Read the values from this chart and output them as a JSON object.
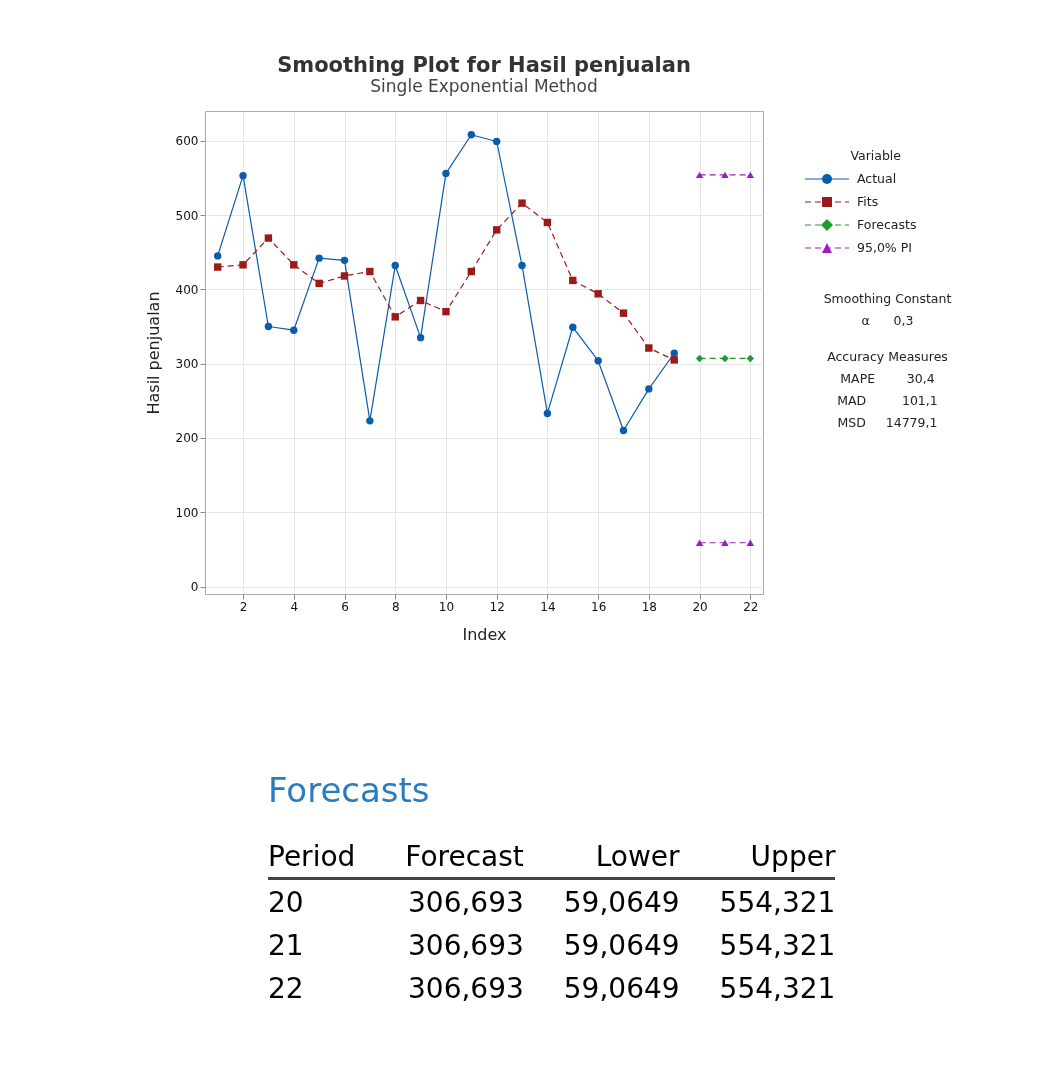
{
  "chart_data": {
    "type": "line",
    "title": "Smoothing Plot for Hasil penjualan",
    "subtitle": "Single Exponential Method",
    "xlabel": "Index",
    "ylabel": "Hasil penjualan",
    "legend_title": "Variable",
    "xlim": [
      0.5,
      22.5
    ],
    "xticks": [
      2,
      4,
      6,
      8,
      10,
      12,
      14,
      16,
      18,
      20,
      22
    ],
    "ylim": [
      -10,
      640
    ],
    "yticks": [
      0,
      100,
      200,
      300,
      400,
      500,
      600
    ],
    "grid": true,
    "legend": "right",
    "series": [
      {
        "name": "Actual",
        "color": "#0b5cad",
        "marker": "circle",
        "line_style": "solid",
        "x": [
          1,
          2,
          3,
          4,
          5,
          6,
          7,
          8,
          9,
          10,
          11,
          12,
          13,
          14,
          15,
          16,
          17,
          18,
          19
        ],
        "values": [
          445,
          553,
          350,
          345,
          442,
          439,
          223,
          432,
          335,
          556,
          608,
          599,
          432,
          233,
          349,
          304,
          210,
          266,
          314
        ]
      },
      {
        "name": "Fits",
        "color": "#9b1b1b",
        "marker": "square",
        "line_style": "dashed",
        "x": [
          1,
          2,
          3,
          4,
          5,
          6,
          7,
          8,
          9,
          10,
          11,
          12,
          13,
          14,
          15,
          16,
          17,
          18,
          19
        ],
        "values": [
          430,
          433,
          469,
          433,
          408,
          418,
          424,
          363,
          385,
          370,
          424,
          480,
          516,
          490,
          412,
          394,
          368,
          321,
          305
        ]
      },
      {
        "name": "Forecasts",
        "color": "#1e9a2e",
        "marker": "diamond",
        "line_style": "dashed",
        "x": [
          20,
          21,
          22
        ],
        "values": [
          307,
          307,
          307
        ]
      },
      {
        "name": "95,0% PI",
        "color": "#9b1fc0",
        "marker": "triangle",
        "line_style": "dashed",
        "x": [
          20,
          21,
          22
        ],
        "values": [
          554,
          554,
          554
        ]
      },
      {
        "color": "#9b1fc0",
        "marker": "triangle",
        "line_style": "dashed",
        "x": [
          20,
          21,
          22
        ],
        "values": [
          59,
          59,
          59
        ]
      }
    ],
    "annotations": [
      "Smoothing Constant",
      "α      0,3",
      "Accuracy Measures",
      "MAPE        30,4",
      "MAD         101,1",
      "MSD     14779,1",
      "Forecasts",
      "Period",
      "Forecast",
      "Lower",
      "Upper",
      "20",
      "306,693",
      "59,0649",
      "554,321",
      "21",
      "306,693",
      "59,0649",
      "554,321",
      "22",
      "306,693",
      "59,0649",
      "554,321"
    ]
  }
}
